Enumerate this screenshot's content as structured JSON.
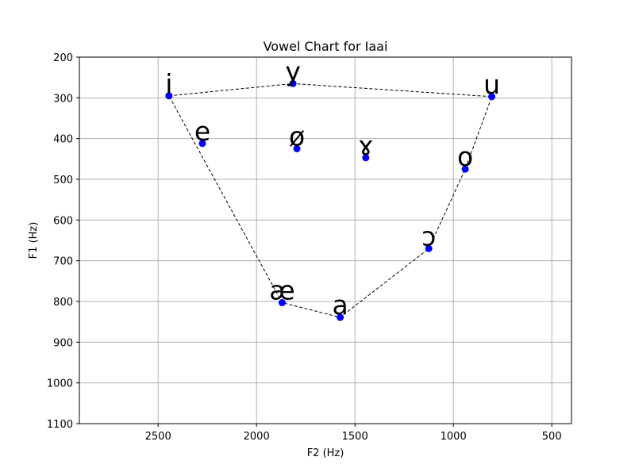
{
  "chart_data": {
    "type": "scatter",
    "title": "Vowel Chart for Iaai",
    "xlabel": "F2 (Hz)",
    "ylabel": "F1 (Hz)",
    "xlim": [
      2900,
      400
    ],
    "ylim": [
      1100,
      200
    ],
    "x_reversed": true,
    "y_reversed": true,
    "xticks": [
      2500,
      2000,
      1500,
      1000,
      500
    ],
    "yticks": [
      200,
      300,
      400,
      500,
      600,
      700,
      800,
      900,
      1000,
      1100
    ],
    "grid": true,
    "point_color": "#0000ff",
    "line_color": "#000000",
    "points": [
      {
        "label": "i",
        "f2": 2445,
        "f1": 295
      },
      {
        "label": "y",
        "f2": 1815,
        "f1": 265
      },
      {
        "label": "u",
        "f2": 805,
        "f1": 297
      },
      {
        "label": "e",
        "f2": 2275,
        "f1": 412
      },
      {
        "label": "ø",
        "f2": 1795,
        "f1": 425
      },
      {
        "label": "ɤ",
        "f2": 1445,
        "f1": 447
      },
      {
        "label": "o",
        "f2": 940,
        "f1": 475
      },
      {
        "label": "ɔ",
        "f2": 1125,
        "f1": 670
      },
      {
        "label": "æ",
        "f2": 1870,
        "f1": 803
      },
      {
        "label": "a",
        "f2": 1575,
        "f1": 839
      }
    ],
    "outline": [
      "i",
      "y",
      "u",
      "o",
      "ɔ",
      "a",
      "æ",
      "i"
    ]
  }
}
